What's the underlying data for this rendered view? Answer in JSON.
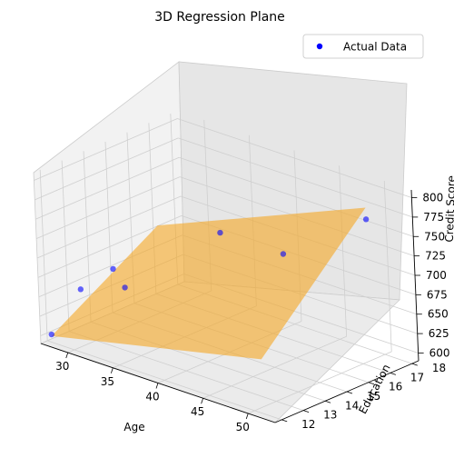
{
  "chart_data": {
    "type": "scatter",
    "subtype": "3d-regression-plane",
    "title": "3D Regression Plane",
    "xlabel": "Age",
    "ylabel": "Education",
    "zlabel": "Credit Score",
    "xlim": [
      27,
      53
    ],
    "ylim": [
      11.7,
      18.3
    ],
    "zlim": [
      590,
      810
    ],
    "xticks": [
      "30",
      "35",
      "40",
      "45",
      "50"
    ],
    "yticks": [
      "12",
      "13",
      "14",
      "15",
      "16",
      "17",
      "18"
    ],
    "zticks": [
      "600",
      "625",
      "650",
      "675",
      "700",
      "725",
      "750",
      "775",
      "800"
    ],
    "grid": true,
    "legend": {
      "position": "top-right",
      "entries": [
        "Actual Data"
      ]
    },
    "series": [
      {
        "name": "Actual Data",
        "color": "#0000ff",
        "points": [
          {
            "age": 27.5,
            "education": 12,
            "credit_score": 600
          },
          {
            "age": 28.5,
            "education": 13,
            "credit_score": 650
          },
          {
            "age": 31,
            "education": 13.5,
            "credit_score": 680
          },
          {
            "age": 31,
            "education": 14,
            "credit_score": 650
          },
          {
            "age": 37,
            "education": 16,
            "credit_score": 720
          },
          {
            "age": 44,
            "education": 16,
            "credit_score": 720
          },
          {
            "age": 51,
            "education": 17,
            "credit_score": 780
          }
        ]
      }
    ],
    "plane": {
      "color": "#f5a623",
      "x": [
        27.5,
        51
      ],
      "y": [
        12,
        17
      ],
      "z": [
        [
          598,
          660
        ],
        [
          680,
          795
        ]
      ]
    }
  }
}
